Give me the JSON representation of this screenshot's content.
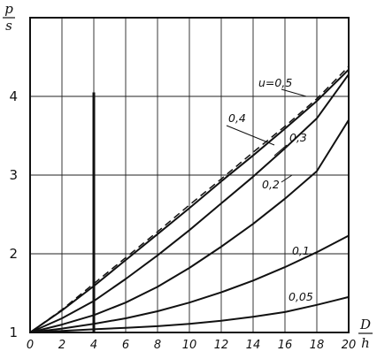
{
  "chart_data": {
    "type": "line",
    "ylabel": {
      "top": "p",
      "bottom": "s"
    },
    "xlabel": {
      "top": "D",
      "bottom": "h"
    },
    "xlim": [
      0,
      20
    ],
    "ylim": [
      1,
      5
    ],
    "x_ticks": [
      "0",
      "2",
      "4",
      "6",
      "8",
      "10",
      "12",
      "14",
      "16",
      "18",
      "20"
    ],
    "y_ticks": [
      "1",
      "2",
      "3",
      "4"
    ],
    "grid": true,
    "marked_x": 4,
    "series": [
      {
        "name": "u=0,5",
        "dashed": true,
        "x": [
          0,
          2,
          4,
          6,
          8,
          10,
          12,
          14,
          16,
          18,
          20
        ],
        "y": [
          1.0,
          1.29,
          1.62,
          1.95,
          2.28,
          2.62,
          2.95,
          3.29,
          3.62,
          3.97,
          4.38
        ]
      },
      {
        "name": "0,4",
        "dashed": false,
        "x": [
          0,
          2,
          4,
          6,
          8,
          10,
          12,
          14,
          16,
          18,
          20
        ],
        "y": [
          1.0,
          1.28,
          1.59,
          1.92,
          2.25,
          2.58,
          2.92,
          3.25,
          3.59,
          3.94,
          4.34
        ]
      },
      {
        "name": "0,3",
        "dashed": false,
        "x": [
          0,
          2,
          4,
          6,
          8,
          10,
          12,
          14,
          16,
          18,
          20
        ],
        "y": [
          1.0,
          1.18,
          1.4,
          1.68,
          1.98,
          2.3,
          2.64,
          2.98,
          3.34,
          3.72,
          4.28
        ]
      },
      {
        "name": "0,2",
        "dashed": false,
        "x": [
          0,
          2,
          4,
          6,
          8,
          10,
          12,
          14,
          16,
          18,
          20
        ],
        "y": [
          1.0,
          1.1,
          1.22,
          1.38,
          1.58,
          1.82,
          2.09,
          2.38,
          2.7,
          3.05,
          3.7
        ]
      },
      {
        "name": "0,1",
        "dashed": false,
        "x": [
          0,
          2,
          4,
          6,
          8,
          10,
          12,
          14,
          16,
          18,
          20
        ],
        "y": [
          1.0,
          1.05,
          1.11,
          1.18,
          1.27,
          1.38,
          1.51,
          1.66,
          1.83,
          2.02,
          2.23
        ]
      },
      {
        "name": "0,05",
        "dashed": false,
        "x": [
          0,
          2,
          4,
          6,
          8,
          10,
          12,
          14,
          16,
          18,
          20
        ],
        "y": [
          1.0,
          1.02,
          1.04,
          1.06,
          1.08,
          1.11,
          1.15,
          1.2,
          1.26,
          1.35,
          1.45
        ]
      }
    ]
  }
}
